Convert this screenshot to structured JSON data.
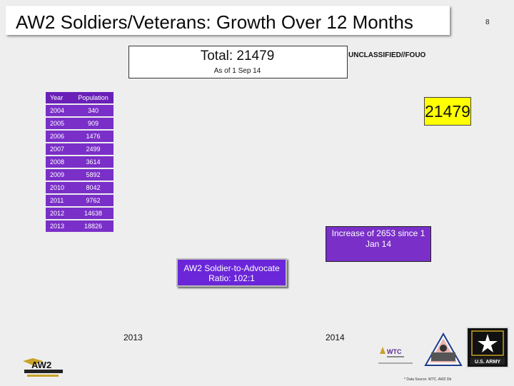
{
  "header": {
    "title": "AW2 Soldiers/Veterans: Growth Over 12 Months",
    "page_number": "8"
  },
  "summary": {
    "total_label": "Total: 21479",
    "as_of": "As of 1 Sep 14",
    "classification": "UNCLASSIFIED//FOUO"
  },
  "callouts": {
    "current_value": "21479",
    "increase": "Increase of 2653 since 1 Jan 14",
    "ratio": "AW2 Soldier-to-Advocate Ratio: 102:1"
  },
  "axis": {
    "x_start": "2013",
    "x_end": "2014"
  },
  "logos": {
    "aw2_text": "AW2",
    "wtc_text": "WTC",
    "army_text": "U.S. ARMY"
  },
  "footer": {
    "source": "* Data Source: WTC, AW2 Db"
  },
  "table": {
    "headers": [
      "Year",
      "Population"
    ],
    "rows": [
      [
        "2004",
        "340"
      ],
      [
        "2005",
        "909"
      ],
      [
        "2006",
        "1476"
      ],
      [
        "2007",
        "2499"
      ],
      [
        "2008",
        "3614"
      ],
      [
        "2009",
        "5892"
      ],
      [
        "2010",
        "8042"
      ],
      [
        "2011",
        "9762"
      ],
      [
        "2012",
        "14638"
      ],
      [
        "2013",
        "18826"
      ]
    ]
  },
  "chart_data": {
    "type": "table",
    "title": "AW2 Soldiers/Veterans: Growth Over 12 Months",
    "columns": [
      "Year",
      "Population"
    ],
    "categories": [
      "2004",
      "2005",
      "2006",
      "2007",
      "2008",
      "2009",
      "2010",
      "2011",
      "2012",
      "2013"
    ],
    "values": [
      340,
      909,
      1476,
      2499,
      3614,
      5892,
      8042,
      9762,
      14638,
      18826
    ],
    "x_axis_labels": [
      "2013",
      "2014"
    ]
  }
}
